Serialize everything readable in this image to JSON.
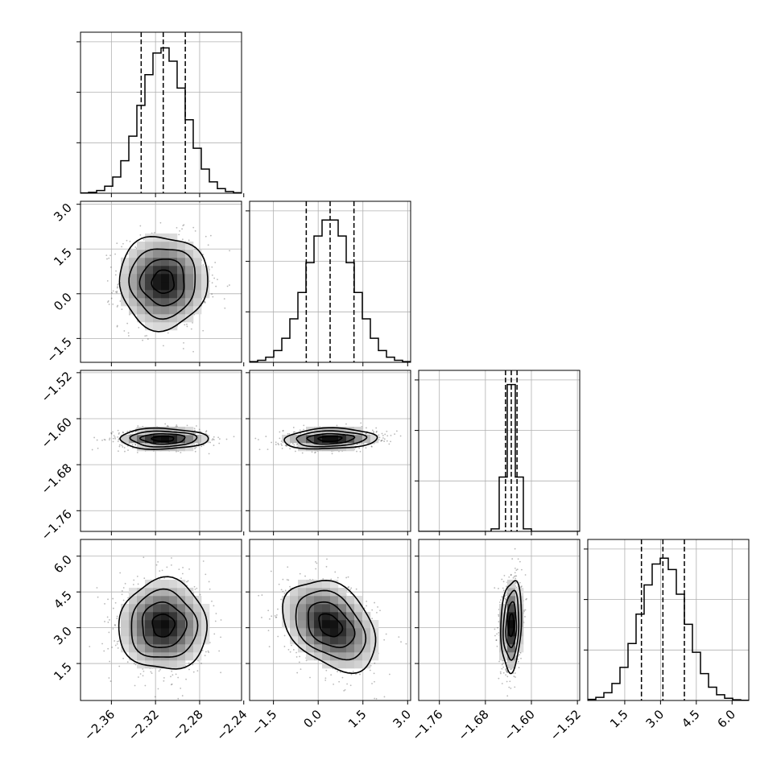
{
  "chart_data": {
    "type": "corner",
    "params": [
      {
        "ticks": [
          -2.36,
          -2.32,
          -2.28,
          -2.24
        ],
        "tick_labels": [
          "−2.36",
          "−2.32",
          "−2.28",
          "−2.24"
        ],
        "range": [
          -2.388,
          -2.242
        ],
        "mean": -2.313,
        "sd": 0.02,
        "quantiles": [
          -2.333,
          -2.313,
          -2.293
        ],
        "hist_peak": 0.95
      },
      {
        "ticks": [
          -1.5,
          0.0,
          1.5,
          3.0
        ],
        "tick_labels": [
          "−1.5",
          "0.0",
          "1.5",
          "3.0"
        ],
        "range": [
          -2.3,
          3.1
        ],
        "mean": 0.4,
        "sd": 0.78,
        "quantiles": [
          -0.4,
          0.4,
          1.2
        ],
        "hist_peak": 0.93
      },
      {
        "ticks": [
          -1.76,
          -1.68,
          -1.6,
          -1.52
        ],
        "tick_labels": [
          "−1.76",
          "−1.68",
          "−1.60",
          "−1.52"
        ],
        "range": [
          -1.796,
          -1.516
        ],
        "mean": -1.635,
        "sd": 0.009,
        "quantiles": [
          -1.645,
          -1.635,
          -1.625
        ],
        "hist_peak": 0.96
      },
      {
        "ticks": [
          1.5,
          3.0,
          4.5,
          6.0
        ],
        "tick_labels": [
          "1.5",
          "3.0",
          "4.5",
          "6.0"
        ],
        "range": [
          -0.05,
          6.7
        ],
        "mean": 3.1,
        "sd": 0.95,
        "quantiles": [
          2.2,
          3.1,
          4.0
        ],
        "hist_peak": 0.93
      }
    ],
    "pairs": [
      {
        "row": 1,
        "col": 0,
        "corr": 0.0
      },
      {
        "row": 2,
        "col": 0,
        "corr": 0.0
      },
      {
        "row": 2,
        "col": 1,
        "corr": 0.12
      },
      {
        "row": 3,
        "col": 0,
        "corr": 0.0
      },
      {
        "row": 3,
        "col": 1,
        "corr": -0.35
      },
      {
        "row": 3,
        "col": 2,
        "corr": 0.15
      }
    ],
    "contour_levels_sigma": [
      0.5,
      1.0,
      1.5,
      2.0
    ],
    "grid": true
  }
}
